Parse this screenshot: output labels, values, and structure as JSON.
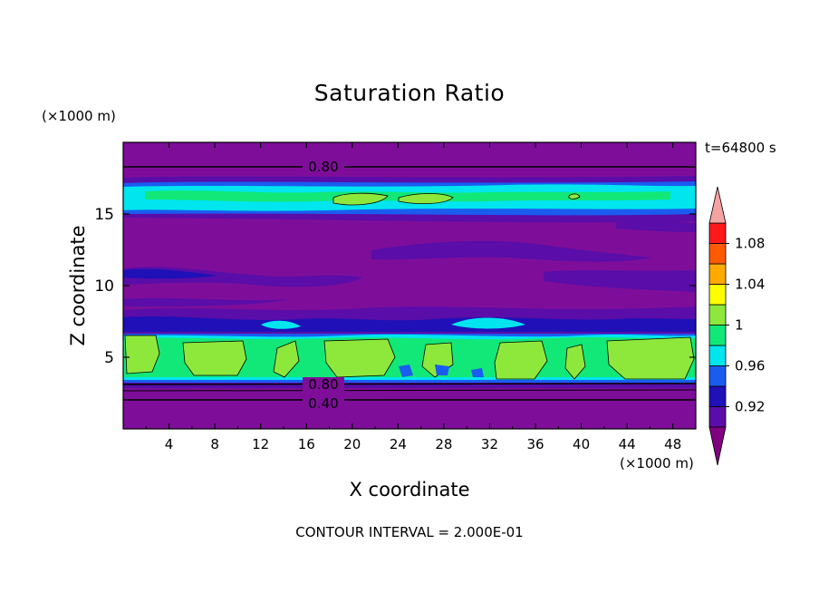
{
  "chart_data": {
    "type": "heatmap",
    "title": "Saturation Ratio",
    "xlabel": "X coordinate",
    "ylabel": "Z coordinate",
    "x_unit": "(×1000 m)",
    "y_unit": "(×1000 m)",
    "time_label": "t=64800 s",
    "footer": "CONTOUR INTERVAL = 2.000E-01",
    "xlim": [
      0,
      50
    ],
    "ylim": [
      0,
      20
    ],
    "xticks": [
      "4",
      "8",
      "12",
      "16",
      "20",
      "24",
      "28",
      "32",
      "36",
      "40",
      "44",
      "48"
    ],
    "yticks": [
      "5",
      "10",
      "15"
    ],
    "colorbar": {
      "colors": [
        "#800080",
        "#5a0da8",
        "#1f10b8",
        "#1a5cf0",
        "#00e5ee",
        "#12e878",
        "#8ee83c",
        "#ffff00",
        "#ffaa00",
        "#ff5a00",
        "#ff1a1a",
        "#f4a3a3"
      ],
      "ticks": [
        "0.92",
        "0.96",
        "1",
        "1.04",
        "1.08"
      ]
    },
    "contour_labels": [
      "0.80",
      "0.80",
      "0.40"
    ],
    "bands": [
      {
        "z0": 0.0,
        "z1": 3.2,
        "value": 0.4,
        "color": "#7e0e9a"
      },
      {
        "z0": 3.4,
        "z1": 6.6,
        "value": 0.97,
        "color": "#12e878"
      },
      {
        "z0": 6.6,
        "z1": 7.4,
        "value": 0.95,
        "color": "#1a5cf0"
      },
      {
        "z0": 7.4,
        "z1": 15.1,
        "value": 0.88,
        "color": "#7e0e9a"
      },
      {
        "z0": 15.1,
        "z1": 17.0,
        "value": 0.97,
        "color": "#00e5ee"
      },
      {
        "z0": 17.0,
        "z1": 20.0,
        "value": 0.8,
        "color": "#7e0e9a"
      }
    ]
  }
}
